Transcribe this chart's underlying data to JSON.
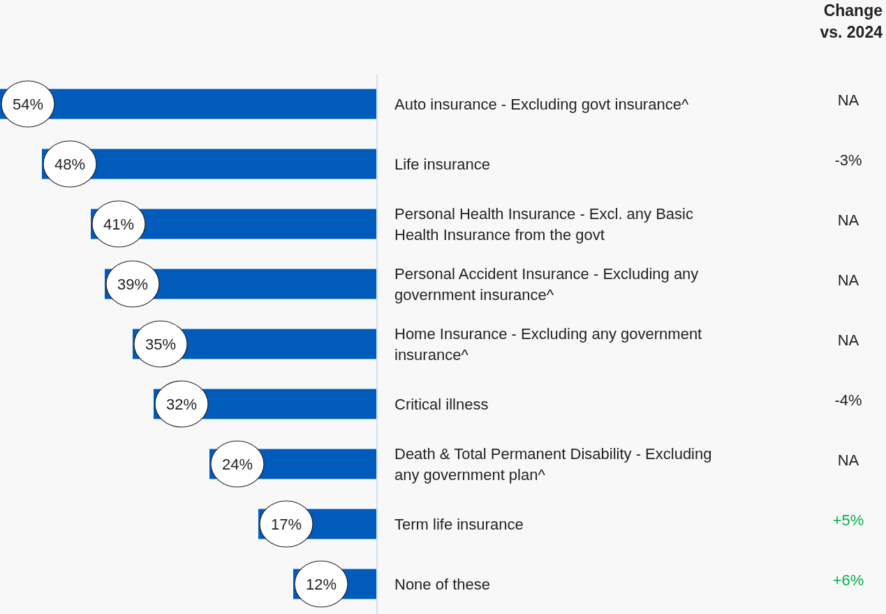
{
  "chart_data": {
    "type": "bar",
    "orientation": "horizontal",
    "color": "#005bbb",
    "xlim": [
      54,
      0
    ],
    "categories": [
      "Auto insurance - Excluding govt insurance^",
      "Life insurance",
      "Personal Health Insurance - Excl. any Basic Health Insurance from the govt",
      "Personal Accident Insurance - Excluding any government insurance^",
      "Home Insurance - Excluding any government insurance^",
      "Critical illness",
      "Death & Total Permanent Disability - Excluding any government plan^",
      "Term life insurance",
      "None of these"
    ],
    "values": [
      54,
      48,
      41,
      39,
      35,
      32,
      24,
      17,
      12
    ],
    "value_labels": [
      "54%",
      "48%",
      "41%",
      "39%",
      "35%",
      "32%",
      "24%",
      "17%",
      "12%"
    ],
    "annotations": [
      "Change vs. 2024",
      "NA",
      "-3%",
      "NA",
      "NA",
      "NA",
      "-4%",
      "NA",
      "+5%",
      "+6%"
    ]
  }
}
